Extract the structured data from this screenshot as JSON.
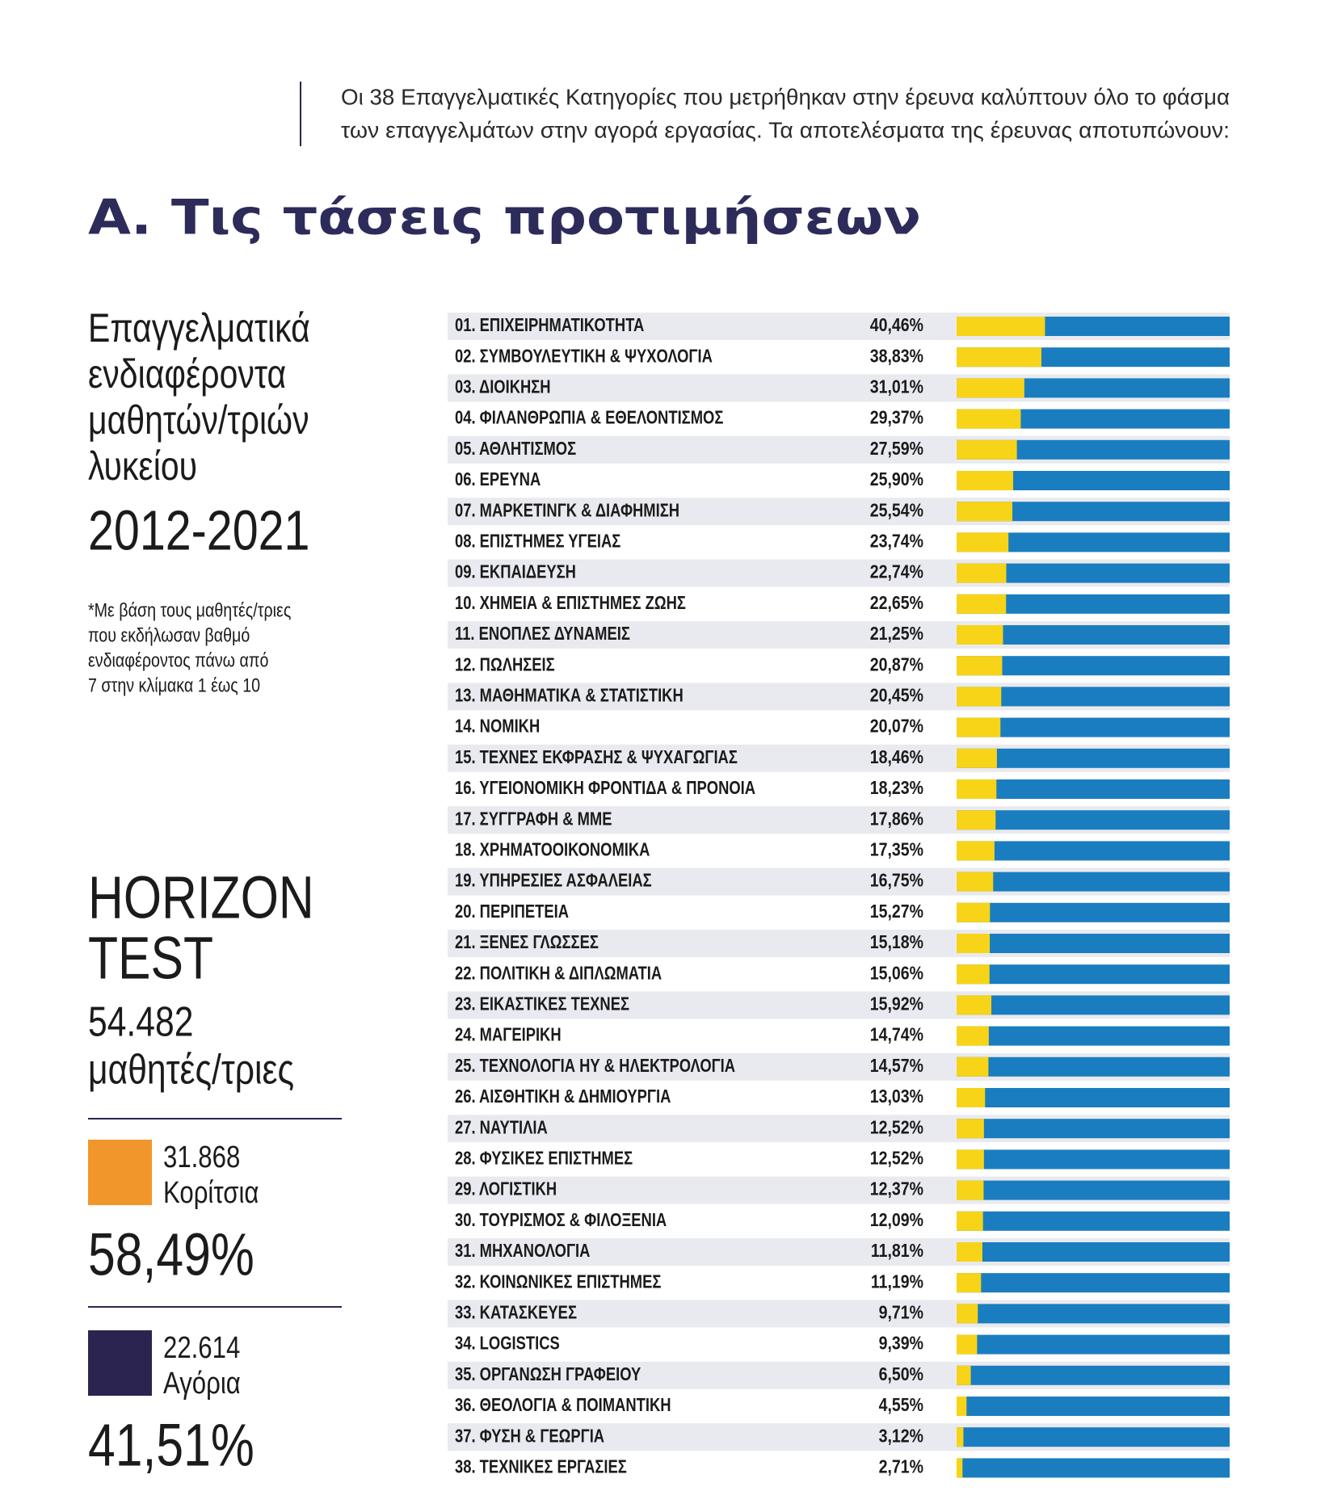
{
  "intro": [
    "Οι 38 Επαγγελματικές Κατηγορίες που μετρήθηκαν στην έρευνα καλύπτουν όλο το φάσμα",
    "των επαγγελμάτων στην αγορά εργασίας. Τα αποτελέσματα της έρευνας αποτυπώνουν:"
  ],
  "heading": "Α. Τις τάσεις προτιμήσεων",
  "sidebar": {
    "title_lines": [
      "Επαγγελματικά",
      "ενδιαφέροντα",
      "μαθητών/τριών",
      "λυκείου"
    ],
    "years": "2012-2021",
    "footnote": [
      "*Με βάση τους μαθητές/τριες",
      "που εκδήλωσαν βαθμό",
      "ενδιαφέροντος πάνω από",
      "7 στην κλίμακα 1 έως 10"
    ],
    "horizon": [
      "HORIZON",
      "TEST"
    ],
    "total": "54.482",
    "total_label": "μαθητές/τριες",
    "girls": {
      "count": "31.868",
      "label": "Κορίτσια",
      "percent": "58,49%",
      "color": "#f0962a"
    },
    "boys": {
      "count": "22.614",
      "label": "Αγόρια",
      "percent": "41,51%",
      "color": "#2b2450"
    }
  },
  "chart_data": {
    "type": "bar",
    "orientation": "horizontal",
    "categories": [
      "01. ΕΠΙΧΕΙΡΗΜΑΤΙΚΟΤΗΤΑ",
      "02. ΣΥΜΒΟΥΛΕΥΤΙΚΗ & ΨΥΧΟΛΟΓΙΑ",
      "03. ΔΙΟΙΚΗΣΗ",
      "04. ΦΙΛΑΝΘΡΩΠΙΑ & ΕΘΕΛΟΝΤΙΣΜΟΣ",
      "05. ΑΘΛΗΤΙΣΜΟΣ",
      "06. ΕΡΕΥΝΑ",
      "07. ΜΑΡΚΕΤΙΝΓΚ & ΔΙΑΦΗΜΙΣΗ",
      "08. ΕΠΙΣΤΗΜΕΣ ΥΓΕΙΑΣ",
      "09. ΕΚΠΑΙΔΕΥΣΗ",
      "10. ΧΗΜΕΙΑ & ΕΠΙΣΤΗΜΕΣ ΖΩΗΣ",
      "11. ΕΝΟΠΛΕΣ ΔΥΝΑΜΕΙΣ",
      "12. ΠΩΛΗΣΕΙΣ",
      "13. ΜΑΘΗΜΑΤΙΚΑ & ΣΤΑΤΙΣΤΙΚΗ",
      "14. ΝΟΜΙΚΗ",
      "15. ΤΕΧΝΕΣ ΕΚΦΡΑΣΗΣ & ΨΥΧΑΓΩΓΙΑΣ",
      "16. ΥΓΕΙΟΝΟΜΙΚΗ ΦΡΟΝΤΙΔΑ & ΠΡΟΝΟΙΑ",
      "17. ΣΥΓΓΡΑΦΗ & ΜΜΕ",
      "18. ΧΡΗΜΑΤΟΟΙΚΟΝΟΜΙΚΑ",
      "19. ΥΠΗΡΕΣΙΕΣ ΑΣΦΑΛΕΙΑΣ",
      "20. ΠΕΡΙΠΕΤΕΙΑ",
      "21. ΞΕΝΕΣ ΓΛΩΣΣΕΣ",
      "22. ΠΟΛΙΤΙΚΗ & ΔΙΠΛΩΜΑΤΙΑ",
      "23. ΕΙΚΑΣΤΙΚΕΣ ΤΕΧΝΕΣ",
      "24. ΜΑΓΕΙΡΙΚΗ",
      "25. ΤΕΧΝΟΛΟΓΙΑ ΗΥ & ΗΛΕΚΤΡΟΛΟΓΙΑ",
      "26. ΑΙΣΘΗΤΙΚΗ & ΔΗΜΙΟΥΡΓΙΑ",
      "27. ΝΑΥΤΙΛΙΑ",
      "28. ΦΥΣΙΚΕΣ ΕΠΙΣΤΗΜΕΣ",
      "29. ΛΟΓΙΣΤΙΚΗ",
      "30. ΤΟΥΡΙΣΜΟΣ & ΦΙΛΟΞΕΝΙΑ",
      "31. ΜΗΧΑΝΟΛΟΓΙΑ",
      "32. ΚΟΙΝΩΝΙΚΕΣ ΕΠΙΣΤΗΜΕΣ",
      "33. ΚΑΤΑΣΚΕΥΕΣ",
      "34. LOGISTICS",
      "35. ΟΡΓΑΝΩΣΗ ΓΡΑΦΕΙΟΥ",
      "36. ΘΕΟΛΟΓΙΑ & ΠΟΙΜΑΝΤΙΚΗ",
      "37. ΦΥΣΗ & ΓΕΩΡΓΙΑ",
      "38. ΤΕΧΝΙΚΕΣ ΕΡΓΑΣΙΕΣ"
    ],
    "values": [
      40.46,
      38.83,
      31.01,
      29.37,
      27.59,
      25.9,
      25.54,
      23.74,
      22.74,
      22.65,
      21.25,
      20.87,
      20.45,
      20.07,
      18.46,
      18.23,
      17.86,
      17.35,
      16.75,
      15.27,
      15.18,
      15.06,
      15.92,
      14.74,
      14.57,
      13.03,
      12.52,
      12.52,
      12.37,
      12.09,
      11.81,
      11.19,
      9.71,
      9.39,
      6.5,
      4.55,
      3.12,
      2.71
    ],
    "value_labels": [
      "40,46%",
      "38,83%",
      "31,01%",
      "29,37%",
      "27,59%",
      "25,90%",
      "25,54%",
      "23,74%",
      "22,74%",
      "22,65%",
      "21,25%",
      "20,87%",
      "20,45%",
      "20,07%",
      "18,46%",
      "18,23%",
      "17,86%",
      "17,35%",
      "16,75%",
      "15,27%",
      "15,18%",
      "15,06%",
      "15,92%",
      "14,74%",
      "14,57%",
      "13,03%",
      "12,52%",
      "12,52%",
      "12,37%",
      "12,09%",
      "11,81%",
      "11,19%",
      "9,71%",
      "9,39%",
      "6,50%",
      "4,55%",
      "3,12%",
      "2,71%"
    ],
    "color": "#f7d417",
    "track_color": "#1a7dc0",
    "xlim": [
      0,
      125
    ]
  }
}
